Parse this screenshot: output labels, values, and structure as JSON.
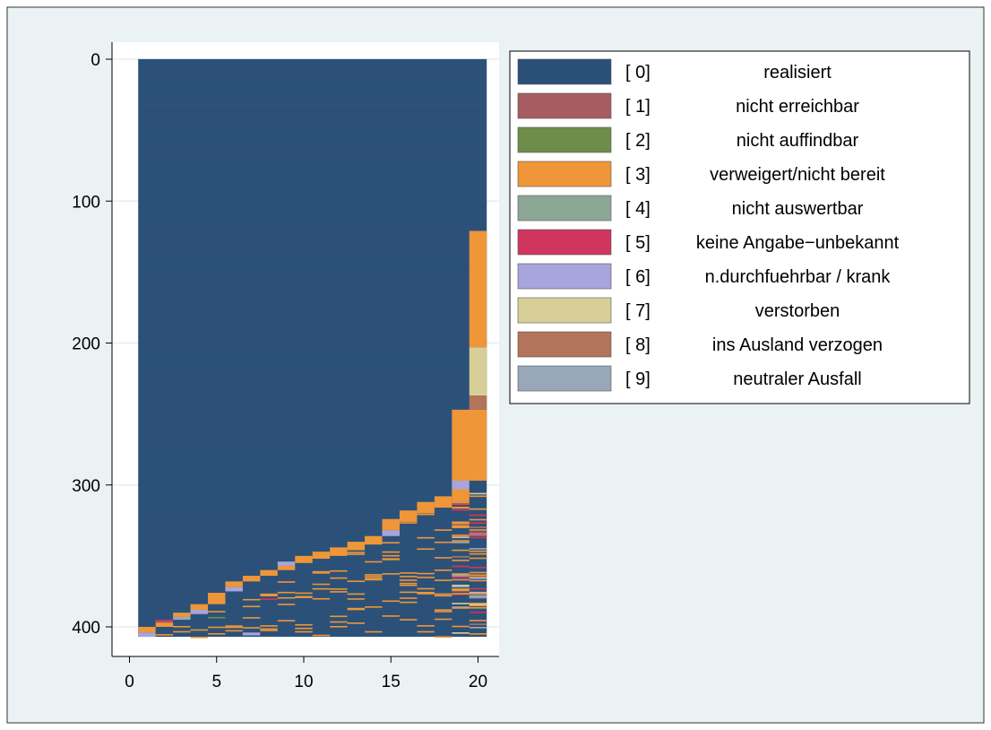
{
  "chart_data": {
    "type": "heatmap",
    "title": "",
    "xlabel": "",
    "ylabel": "",
    "xlim": [
      0.5,
      20.5
    ],
    "ylim": [
      407,
      0
    ],
    "x_ticks": [
      "0",
      "5",
      "10",
      "15",
      "20"
    ],
    "y_ticks": [
      "0",
      "100",
      "200",
      "300",
      "400"
    ],
    "n_waves": 20,
    "n_cases": 407,
    "legend_position": "top-right",
    "grid": true,
    "background_color": "#eaf2f3",
    "categories": [
      {
        "code": 0,
        "label_code": "[ 0]",
        "label_text": "realisiert",
        "color": "#2b5078"
      },
      {
        "code": 1,
        "label_code": "[ 1]",
        "label_text": "nicht erreichbar",
        "color": "#a65c62"
      },
      {
        "code": 2,
        "label_code": "[ 2]",
        "label_text": "nicht auffindbar",
        "color": "#6e8d4a"
      },
      {
        "code": 3,
        "label_code": "[ 3]",
        "label_text": "verweigert/nicht bereit",
        "color": "#ee9638"
      },
      {
        "code": 4,
        "label_code": "[ 4]",
        "label_text": "nicht auswertbar",
        "color": "#8ca796"
      },
      {
        "code": 5,
        "label_code": "[ 5]",
        "label_text": "keine Angabe−unbekannt",
        "color": "#d0355e"
      },
      {
        "code": 6,
        "label_code": "[ 6]",
        "label_text": "n.durchfuehrbar / krank",
        "color": "#a8a4dc"
      },
      {
        "code": 7,
        "label_code": "[ 7]",
        "label_text": "verstorben",
        "color": "#d8cf98"
      },
      {
        "code": 8,
        "label_code": "[ 8]",
        "label_text": "ins Ausland verzogen",
        "color": "#b2745a"
      },
      {
        "code": 9,
        "label_code": "[ 9]",
        "label_text": "neutraler Ausfall",
        "color": "#98a8b8"
      }
    ],
    "background_state": 0,
    "segments": [
      {
        "state": 3,
        "x": [
          20,
          20
        ],
        "y": [
          121,
          203
        ]
      },
      {
        "state": 7,
        "x": [
          20,
          20
        ],
        "y": [
          203,
          237
        ]
      },
      {
        "state": 8,
        "x": [
          20,
          20
        ],
        "y": [
          237,
          247
        ]
      },
      {
        "state": 3,
        "x": [
          19,
          20
        ],
        "y": [
          247,
          297
        ]
      },
      {
        "state": 6,
        "x": [
          19,
          19
        ],
        "y": [
          297,
          303
        ]
      },
      {
        "state": 3,
        "x": [
          19,
          19
        ],
        "y": [
          303,
          312
        ]
      },
      {
        "state": 3,
        "x": [
          18,
          18
        ],
        "y": [
          308,
          316
        ]
      },
      {
        "state": 3,
        "x": [
          17,
          17
        ],
        "y": [
          312,
          320
        ]
      },
      {
        "state": 3,
        "x": [
          16,
          16
        ],
        "y": [
          318,
          326
        ]
      },
      {
        "state": 3,
        "x": [
          15,
          15
        ],
        "y": [
          324,
          332
        ]
      },
      {
        "state": 6,
        "x": [
          15,
          15
        ],
        "y": [
          332,
          336
        ]
      },
      {
        "state": 3,
        "x": [
          14,
          14
        ],
        "y": [
          336,
          342
        ]
      },
      {
        "state": 3,
        "x": [
          13,
          13
        ],
        "y": [
          340,
          346
        ]
      },
      {
        "state": 3,
        "x": [
          12,
          12
        ],
        "y": [
          344,
          350
        ]
      },
      {
        "state": 3,
        "x": [
          11,
          11
        ],
        "y": [
          347,
          352
        ]
      },
      {
        "state": 3,
        "x": [
          10,
          10
        ],
        "y": [
          350,
          355
        ]
      },
      {
        "state": 6,
        "x": [
          9,
          9
        ],
        "y": [
          354,
          357
        ]
      },
      {
        "state": 3,
        "x": [
          9,
          9
        ],
        "y": [
          357,
          360
        ]
      },
      {
        "state": 3,
        "x": [
          8,
          8
        ],
        "y": [
          360,
          364
        ]
      },
      {
        "state": 3,
        "x": [
          7,
          7
        ],
        "y": [
          364,
          368
        ]
      },
      {
        "state": 3,
        "x": [
          6,
          6
        ],
        "y": [
          368,
          372
        ]
      },
      {
        "state": 6,
        "x": [
          6,
          6
        ],
        "y": [
          372,
          375
        ]
      },
      {
        "state": 3,
        "x": [
          5,
          5
        ],
        "y": [
          376,
          384
        ]
      },
      {
        "state": 3,
        "x": [
          4,
          4
        ],
        "y": [
          384,
          388
        ]
      },
      {
        "state": 6,
        "x": [
          4,
          4
        ],
        "y": [
          388,
          391
        ]
      },
      {
        "state": 3,
        "x": [
          3,
          3
        ],
        "y": [
          390,
          393
        ]
      },
      {
        "state": 9,
        "x": [
          3,
          3
        ],
        "y": [
          393,
          395
        ]
      },
      {
        "state": 5,
        "x": [
          2,
          2
        ],
        "y": [
          395,
          396
        ]
      },
      {
        "state": 1,
        "x": [
          2,
          2
        ],
        "y": [
          396,
          397
        ]
      },
      {
        "state": 3,
        "x": [
          2,
          2
        ],
        "y": [
          397,
          400
        ]
      },
      {
        "state": 3,
        "x": [
          1,
          1
        ],
        "y": [
          400,
          404
        ]
      },
      {
        "state": 6,
        "x": [
          1,
          1
        ],
        "y": [
          404,
          407
        ]
      },
      {
        "state": 2,
        "x": [
          5,
          5
        ],
        "y": [
          393,
          394
        ]
      },
      {
        "state": 5,
        "x": [
          8,
          8
        ],
        "y": [
          380,
          381
        ]
      },
      {
        "state": 6,
        "x": [
          7,
          7
        ],
        "y": [
          404,
          406
        ]
      }
    ],
    "scattered_state": 3
  }
}
